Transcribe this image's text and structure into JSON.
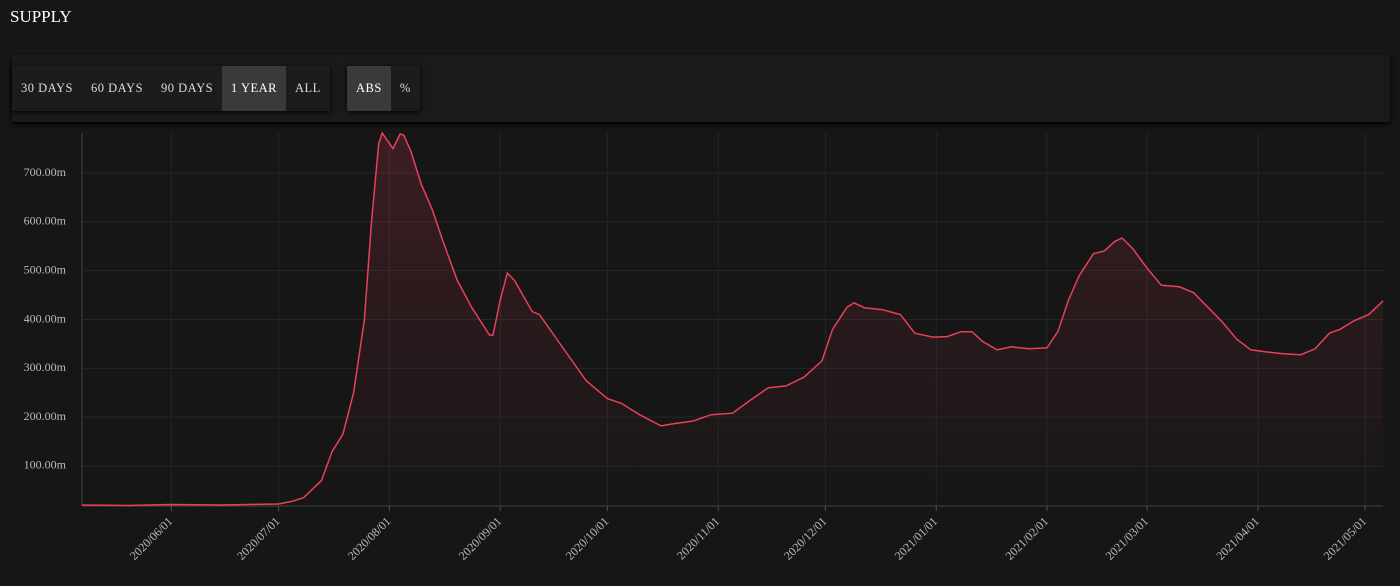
{
  "header": {
    "title": "SUPPLY",
    "range_buttons": [
      "30 DAYS",
      "60 DAYS",
      "90 DAYS",
      "1 YEAR",
      "ALL"
    ],
    "active_range_index": 3,
    "mode_buttons": [
      "ABS",
      "%"
    ],
    "active_mode_index": 0
  },
  "chart_data": {
    "type": "line",
    "color": "#e8405a",
    "grid": true,
    "x": [
      "2020-05-07",
      "2020-05-20",
      "2020-06-01",
      "2020-06-15",
      "2020-07-01",
      "2020-07-05",
      "2020-07-08",
      "2020-07-13",
      "2020-07-16",
      "2020-07-19",
      "2020-07-22",
      "2020-07-25",
      "2020-07-27",
      "2020-07-29",
      "2020-07-30",
      "2020-08-02",
      "2020-08-04",
      "2020-08-05",
      "2020-08-07",
      "2020-08-10",
      "2020-08-13",
      "2020-08-16",
      "2020-08-20",
      "2020-08-24",
      "2020-08-29",
      "2020-08-30",
      "2020-09-01",
      "2020-09-03",
      "2020-09-05",
      "2020-09-10",
      "2020-09-12",
      "2020-09-17",
      "2020-09-25",
      "2020-10-01",
      "2020-10-05",
      "2020-10-10",
      "2020-10-16",
      "2020-10-19",
      "2020-10-25",
      "2020-10-30",
      "2020-11-05",
      "2020-11-10",
      "2020-11-15",
      "2020-11-20",
      "2020-11-25",
      "2020-11-30",
      "2020-12-03",
      "2020-12-07",
      "2020-12-09",
      "2020-12-12",
      "2020-12-17",
      "2020-12-22",
      "2020-12-26",
      "2020-12-31",
      "2021-01-04",
      "2021-01-08",
      "2021-01-11",
      "2021-01-14",
      "2021-01-18",
      "2021-01-22",
      "2021-01-27",
      "2021-02-01",
      "2021-02-04",
      "2021-02-07",
      "2021-02-10",
      "2021-02-14",
      "2021-02-17",
      "2021-02-20",
      "2021-02-22",
      "2021-02-25",
      "2021-03-01",
      "2021-03-05",
      "2021-03-10",
      "2021-03-14",
      "2021-03-18",
      "2021-03-22",
      "2021-03-26",
      "2021-03-30",
      "2021-04-03",
      "2021-04-08",
      "2021-04-13",
      "2021-04-17",
      "2021-04-21",
      "2021-04-24",
      "2021-04-28",
      "2021-05-02",
      "2021-05-06"
    ],
    "values": [
      20,
      19,
      21,
      20,
      22,
      28,
      35,
      70,
      130,
      165,
      250,
      400,
      600,
      760,
      782,
      750,
      780,
      778,
      745,
      676,
      625,
      560,
      480,
      425,
      368,
      368,
      440,
      495,
      480,
      416,
      410,
      358,
      275,
      238,
      228,
      205,
      182,
      186,
      192,
      205,
      208,
      235,
      260,
      264,
      282,
      315,
      380,
      425,
      434,
      424,
      420,
      410,
      372,
      364,
      365,
      375,
      375,
      355,
      338,
      344,
      340,
      342,
      375,
      440,
      490,
      535,
      540,
      560,
      567,
      545,
      505,
      470,
      467,
      455,
      425,
      395,
      360,
      338,
      334,
      330,
      328,
      340,
      372,
      380,
      398,
      410,
      438
    ],
    "xlim": [
      "2020-05-07",
      "2021-05-06"
    ],
    "xticks": [
      {
        "value": "2020-06-01",
        "label": "2020/06/01"
      },
      {
        "value": "2020-07-01",
        "label": "2020/07/01"
      },
      {
        "value": "2020-08-01",
        "label": "2020/08/01"
      },
      {
        "value": "2020-09-01",
        "label": "2020/09/01"
      },
      {
        "value": "2020-10-01",
        "label": "2020/10/01"
      },
      {
        "value": "2020-11-01",
        "label": "2020/11/01"
      },
      {
        "value": "2020-12-01",
        "label": "2020/12/01"
      },
      {
        "value": "2021-01-01",
        "label": "2021/01/01"
      },
      {
        "value": "2021-02-01",
        "label": "2021/02/01"
      },
      {
        "value": "2021-03-01",
        "label": "2021/03/01"
      },
      {
        "value": "2021-04-01",
        "label": "2021/04/01"
      },
      {
        "value": "2021-05-01",
        "label": "2021/05/01"
      }
    ],
    "ylim": [
      18,
      782
    ],
    "yticks": [
      {
        "value": 100,
        "label": "100.00m"
      },
      {
        "value": 200,
        "label": "200.00m"
      },
      {
        "value": 300,
        "label": "300.00m"
      },
      {
        "value": 400,
        "label": "400.00m"
      },
      {
        "value": 500,
        "label": "500.00m"
      },
      {
        "value": 600,
        "label": "600.00m"
      },
      {
        "value": 700,
        "label": "700.00m"
      }
    ]
  }
}
